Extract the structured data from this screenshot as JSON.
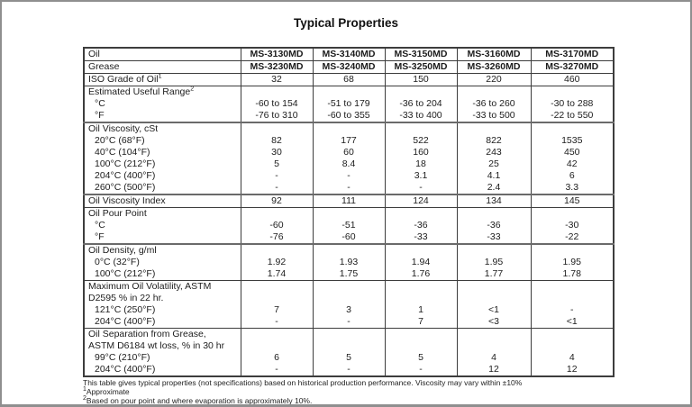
{
  "page": {
    "title": "Typical Properties",
    "footnotes": [
      {
        "sup": "",
        "text": "This table gives typical properties (not specifications) based on historical production performance. Viscosity may vary within ±10%"
      },
      {
        "sup": "1",
        "text": "Approximate"
      },
      {
        "sup": "2",
        "text": "Based on pour point and where evaporation is approximately 10%."
      }
    ]
  },
  "table": {
    "product_columns": [
      "MS-3130MD",
      "MS-3140MD",
      "MS-3150MD",
      "MS-3160MD",
      "MS-3170MD"
    ],
    "sections": [
      {
        "border_top": "thin",
        "bold": true,
        "rows": [
          {
            "label": "Oil",
            "sup": "",
            "indent": false,
            "values": [
              "MS-3130MD",
              "MS-3140MD",
              "MS-3150MD",
              "MS-3160MD",
              "MS-3170MD"
            ]
          }
        ]
      },
      {
        "border_top": "thin",
        "bold": true,
        "rows": [
          {
            "label": "Grease",
            "sup": "",
            "indent": false,
            "values": [
              "MS-3230MD",
              "MS-3240MD",
              "MS-3250MD",
              "MS-3260MD",
              "MS-3270MD"
            ]
          }
        ]
      },
      {
        "border_top": "thin",
        "bold": false,
        "rows": [
          {
            "label": "ISO Grade of Oil",
            "sup": "1",
            "indent": false,
            "values": [
              "32",
              "68",
              "150",
              "220",
              "460"
            ]
          }
        ]
      },
      {
        "border_top": "thin",
        "bold": false,
        "rows": [
          {
            "label": "Estimated Useful Range",
            "sup": "2",
            "indent": false,
            "values": [
              "",
              "",
              "",
              "",
              ""
            ]
          },
          {
            "label": "°C",
            "sup": "",
            "indent": true,
            "values": [
              "-60 to 154",
              "-51 to 179",
              "-36 to 204",
              "-36 to 260",
              "-30 to 288"
            ]
          },
          {
            "label": "°F",
            "sup": "",
            "indent": true,
            "values": [
              "-76 to 310",
              "-60 to 355",
              "-33 to 400",
              "-33 to 500",
              "-22 to 550"
            ]
          }
        ]
      },
      {
        "border_top": "thick",
        "bold": false,
        "rows": [
          {
            "label": "Oil Viscosity, cSt",
            "sup": "",
            "indent": false,
            "values": [
              "",
              "",
              "",
              "",
              ""
            ]
          },
          {
            "label": "20°C (68°F)",
            "sup": "",
            "indent": true,
            "values": [
              "82",
              "177",
              "522",
              "822",
              "1535"
            ]
          },
          {
            "label": "40°C (104°F)",
            "sup": "",
            "indent": true,
            "values": [
              "30",
              "60",
              "160",
              "243",
              "450"
            ]
          },
          {
            "label": "100°C (212°F)",
            "sup": "",
            "indent": true,
            "values": [
              "5",
              "8.4",
              "18",
              "25",
              "42"
            ]
          },
          {
            "label": "204°C (400°F)",
            "sup": "",
            "indent": true,
            "values": [
              "-",
              "-",
              "3.1",
              "4.1",
              "6"
            ]
          },
          {
            "label": "260°C (500°F)",
            "sup": "",
            "indent": true,
            "values": [
              "-",
              "-",
              "-",
              "2.4",
              "3.3"
            ]
          }
        ]
      },
      {
        "border_top": "thick",
        "bold": false,
        "rows": [
          {
            "label": "Oil Viscosity Index",
            "sup": "",
            "indent": false,
            "values": [
              "92",
              "111",
              "124",
              "134",
              "145"
            ]
          }
        ]
      },
      {
        "border_top": "thin",
        "bold": false,
        "rows": [
          {
            "label": "Oil Pour Point",
            "sup": "",
            "indent": false,
            "values": [
              "",
              "",
              "",
              "",
              ""
            ]
          },
          {
            "label": "°C",
            "sup": "",
            "indent": true,
            "values": [
              "-60",
              "-51",
              "-36",
              "-36",
              "-30"
            ]
          },
          {
            "label": "°F",
            "sup": "",
            "indent": true,
            "values": [
              "-76",
              "-60",
              "-33",
              "-33",
              "-22"
            ]
          }
        ]
      },
      {
        "border_top": "thick",
        "bold": false,
        "rows": [
          {
            "label": "Oil Density, g/ml",
            "sup": "",
            "indent": false,
            "values": [
              "",
              "",
              "",
              "",
              ""
            ]
          },
          {
            "label": "0°C (32°F)",
            "sup": "",
            "indent": true,
            "values": [
              "1.92",
              "1.93",
              "1.94",
              "1.95",
              "1.95"
            ]
          },
          {
            "label": "100°C (212°F)",
            "sup": "",
            "indent": true,
            "values": [
              "1.74",
              "1.75",
              "1.76",
              "1.77",
              "1.78"
            ]
          }
        ]
      },
      {
        "border_top": "thin",
        "bold": false,
        "rows": [
          {
            "label": "Maximum Oil Volatility, ASTM",
            "sup": "",
            "indent": false,
            "values": [
              "",
              "",
              "",
              "",
              ""
            ]
          },
          {
            "label": "D2595 % in 22 hr.",
            "sup": "",
            "indent": false,
            "values": [
              "",
              "",
              "",
              "",
              ""
            ]
          },
          {
            "label": "121°C (250°F)",
            "sup": "",
            "indent": true,
            "values": [
              "7",
              "3",
              "1",
              "<1",
              "-"
            ]
          },
          {
            "label": "204°C (400°F)",
            "sup": "",
            "indent": true,
            "values": [
              "-",
              "-",
              "7",
              "<3",
              "<1"
            ]
          }
        ]
      },
      {
        "border_top": "thin",
        "bold": false,
        "rows": [
          {
            "label": "Oil Separation from Grease,",
            "sup": "",
            "indent": false,
            "values": [
              "",
              "",
              "",
              "",
              ""
            ]
          },
          {
            "label": "ASTM D6184 wt loss, % in 30 hr",
            "sup": "",
            "indent": false,
            "values": [
              "",
              "",
              "",
              "",
              ""
            ]
          },
          {
            "label": "99°C (210°F)",
            "sup": "",
            "indent": true,
            "values": [
              "6",
              "5",
              "5",
              "4",
              "4"
            ]
          },
          {
            "label": "204°C (400°F)",
            "sup": "",
            "indent": true,
            "values": [
              "-",
              "-",
              "-",
              "12",
              "12"
            ]
          }
        ]
      }
    ]
  }
}
